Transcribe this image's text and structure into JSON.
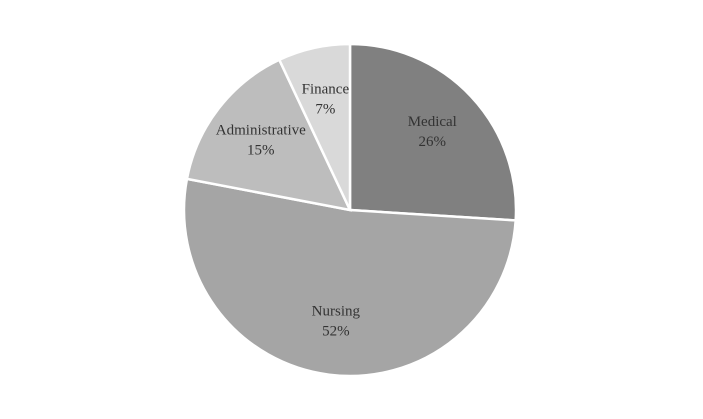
{
  "chart_data": {
    "type": "pie",
    "categories": [
      "Medical",
      "Nursing",
      "Administrative",
      "Finance"
    ],
    "values": [
      26,
      52,
      15,
      7
    ],
    "value_labels": [
      "26%",
      "52%",
      "15%",
      "7%"
    ],
    "colors": [
      "#808080",
      "#a5a5a5",
      "#bdbdbd",
      "#d9d9d9"
    ]
  }
}
